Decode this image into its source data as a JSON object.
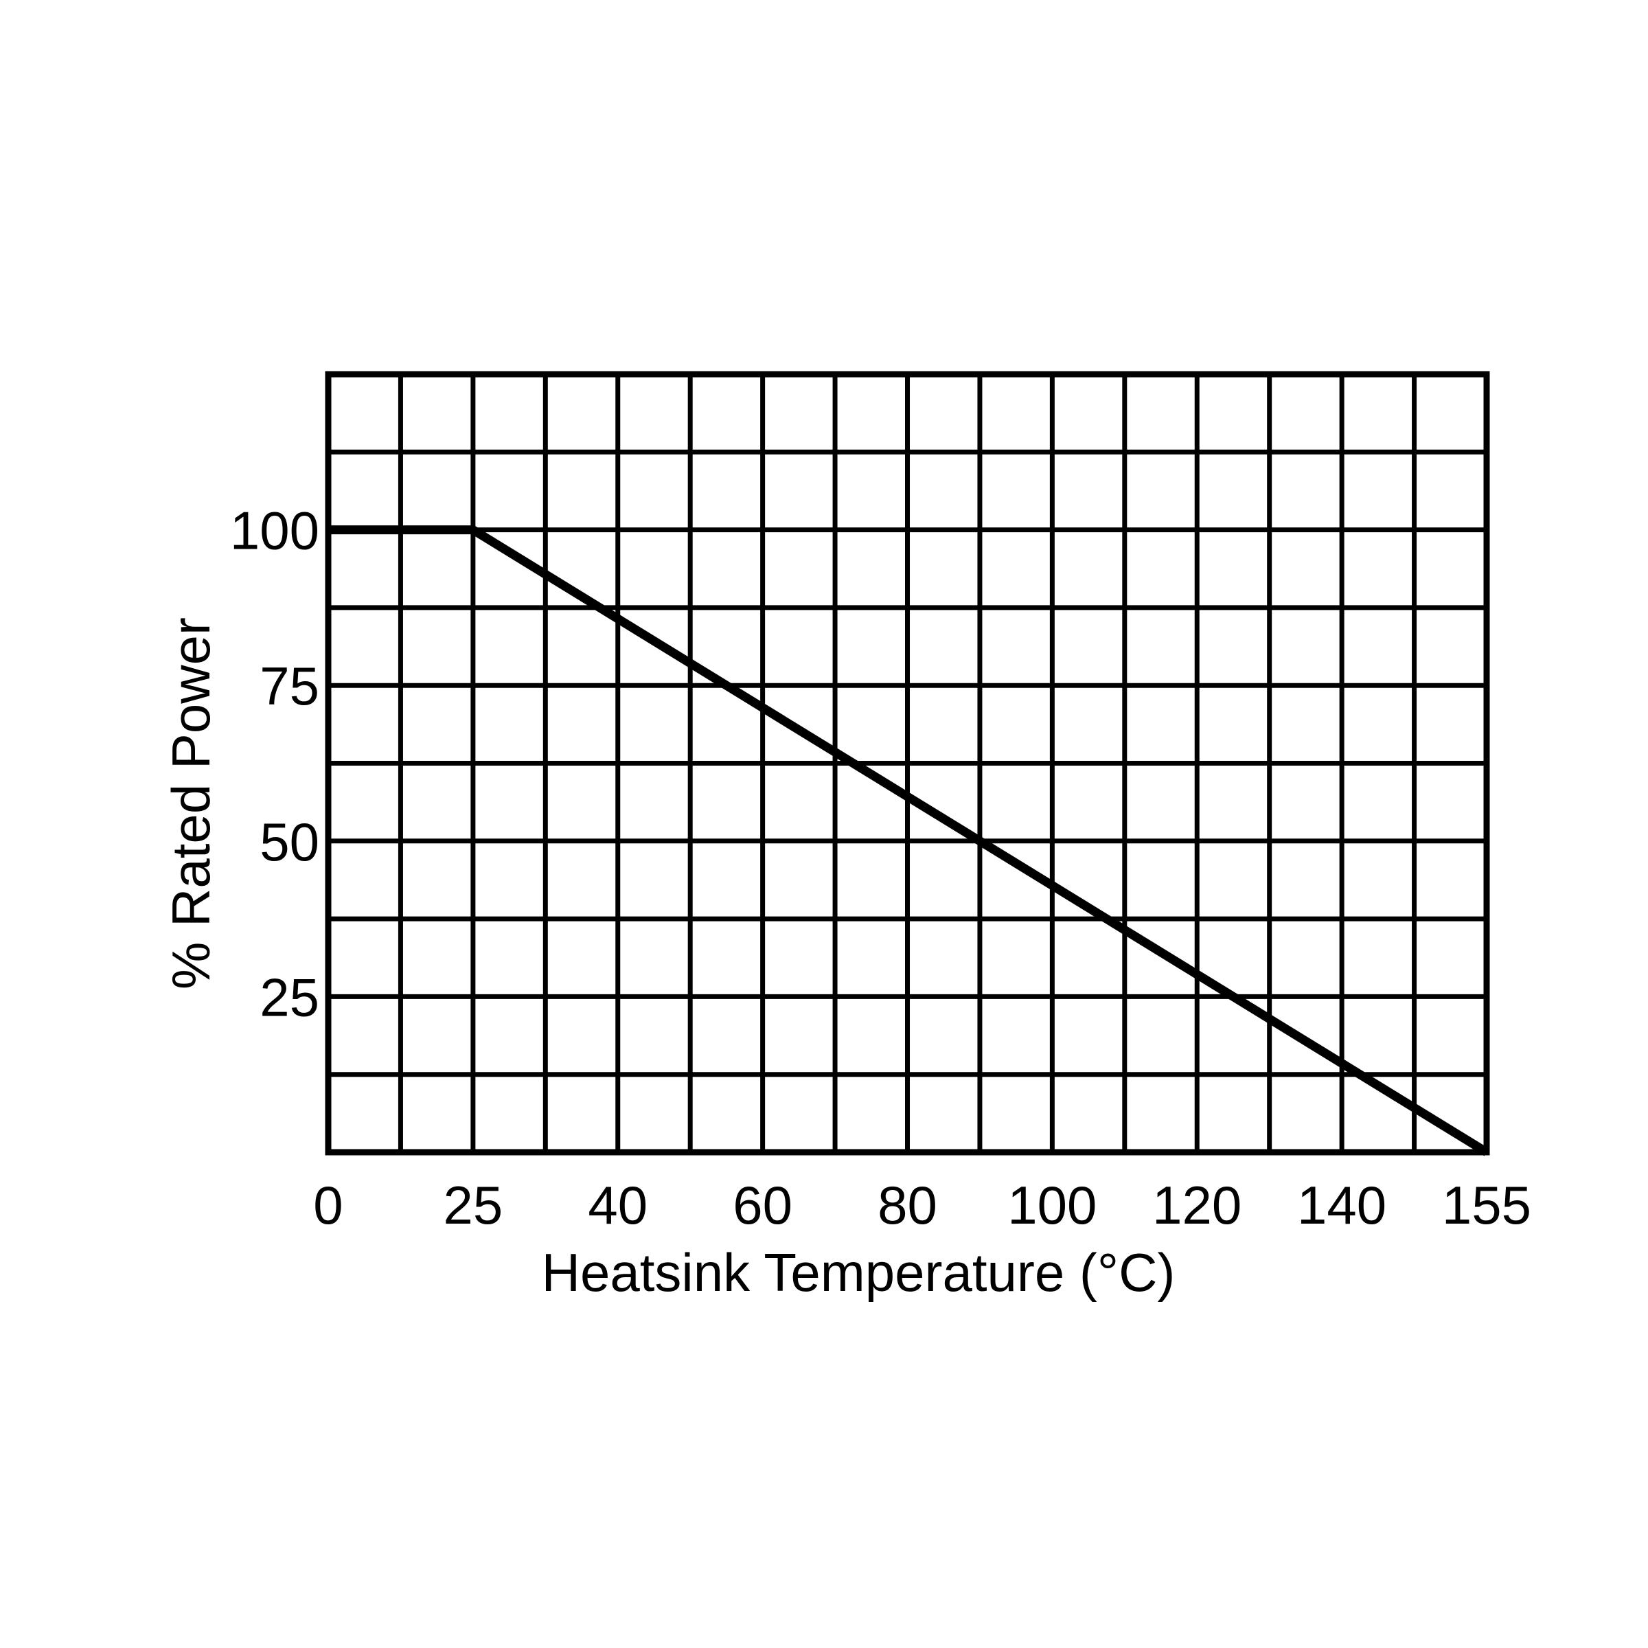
{
  "chart_data": {
    "type": "line",
    "xlabel": "Heatsink Temperature (°C)",
    "ylabel": "% Rated Power",
    "xlim": [
      0,
      155
    ],
    "ylim": [
      0,
      125
    ],
    "grid": true,
    "legend": "none",
    "line_color": "#000000",
    "grid_color": "#000000",
    "x_ticks": [
      {
        "label": "0",
        "value": 0
      },
      {
        "label": "25",
        "value": 25
      },
      {
        "label": "40",
        "value": 40
      },
      {
        "label": "60",
        "value": 60
      },
      {
        "label": "80",
        "value": 80
      },
      {
        "label": "100",
        "value": 100
      },
      {
        "label": "120",
        "value": 120
      },
      {
        "label": "140",
        "value": 140
      },
      {
        "label": "155",
        "value": 155
      }
    ],
    "y_ticks": [
      {
        "label": "25",
        "value": 25
      },
      {
        "label": "50",
        "value": 50
      },
      {
        "label": "75",
        "value": 75
      },
      {
        "label": "100",
        "value": 100
      }
    ],
    "series": [
      {
        "points": [
          {
            "x": 0,
            "y": 100
          },
          {
            "x": 25,
            "y": 100
          },
          {
            "x": 155,
            "y": 0
          }
        ]
      }
    ]
  }
}
